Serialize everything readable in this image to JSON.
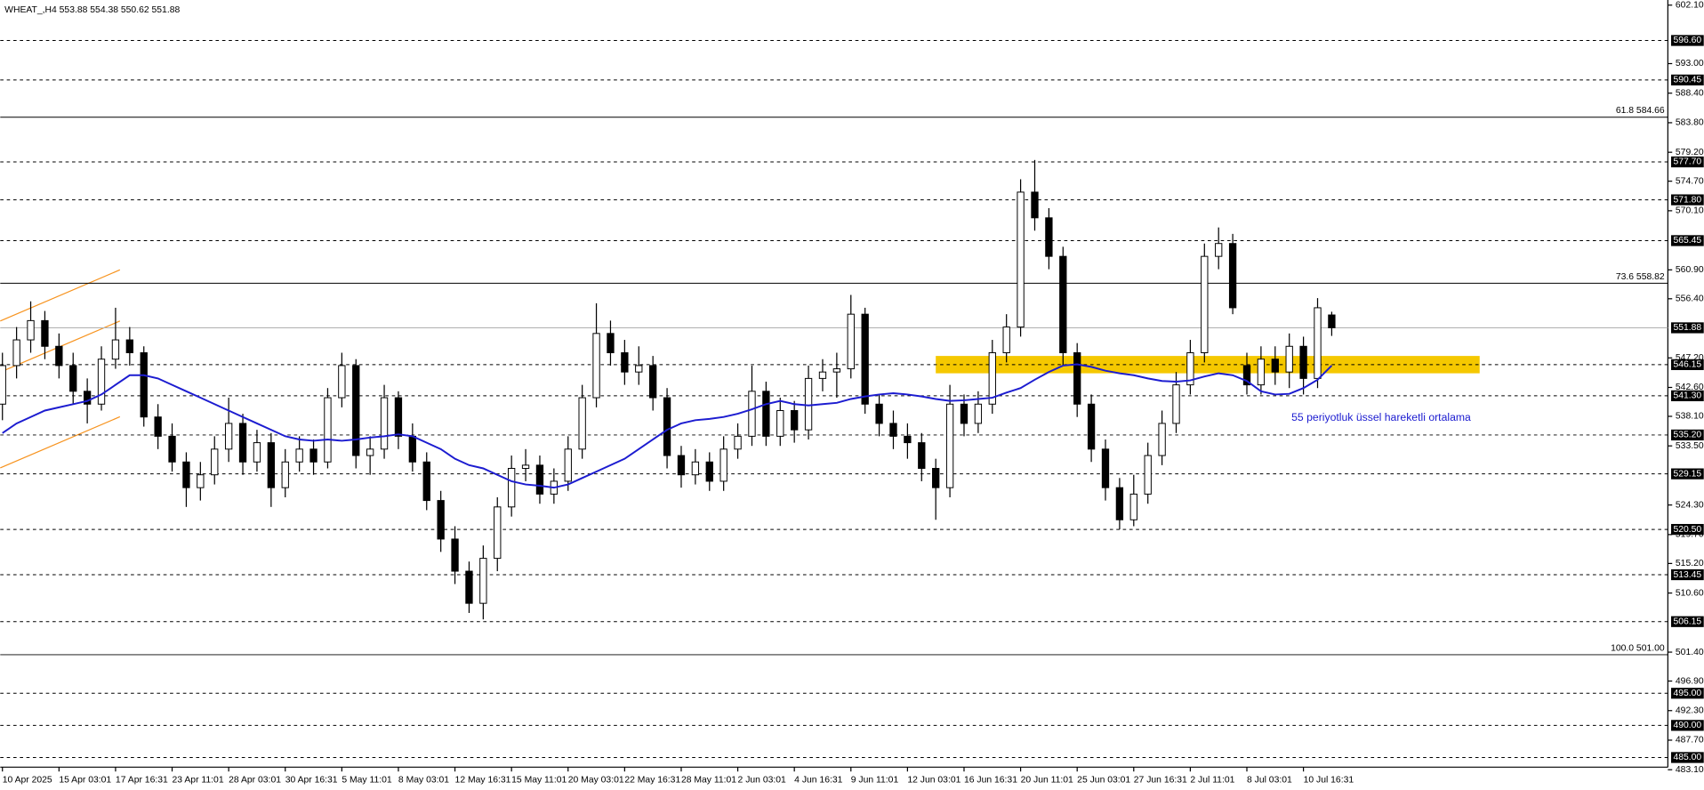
{
  "chart_data": {
    "type": "candlestick",
    "title": "WHEAT_,H4  553.88 554.38 550.62 551.88",
    "categories": [
      "10 Apr 2025",
      null,
      null,
      null,
      "15 Apr 03:01",
      null,
      null,
      null,
      "17 Apr 16:31",
      null,
      null,
      null,
      "23 Apr 11:01",
      null,
      null,
      null,
      "28 Apr 03:01",
      null,
      null,
      null,
      "30 Apr 16:31",
      null,
      null,
      null,
      "5 May 11:01",
      null,
      null,
      null,
      "8 May 03:01",
      null,
      null,
      null,
      "12 May 16:31",
      null,
      null,
      null,
      "15 May 11:01",
      null,
      null,
      null,
      "20 May 03:01",
      null,
      null,
      null,
      "22 May 16:31",
      null,
      null,
      null,
      "28 May 11:01",
      null,
      null,
      null,
      "2 Jun 03:01",
      null,
      null,
      null,
      "4 Jun 16:31",
      null,
      null,
      null,
      "9 Jun 11:01",
      null,
      null,
      null,
      "12 Jun 03:01",
      null,
      null,
      null,
      "16 Jun 16:31",
      null,
      null,
      null,
      "20 Jun 11:01",
      null,
      null,
      null,
      "25 Jun 03:01",
      null,
      null,
      null,
      "27 Jun 16:31",
      null,
      null,
      null,
      "2 Jul 11:01",
      null,
      null,
      null,
      "8 Jul 03:01",
      null,
      null,
      null,
      "10 Jul 16:31",
      null,
      null
    ],
    "open": [
      540,
      546,
      550,
      553,
      549,
      546,
      542,
      540,
      547,
      550,
      548,
      538,
      535,
      531,
      527,
      529,
      533,
      537,
      531,
      534,
      527,
      531,
      533,
      531,
      541,
      546,
      532,
      533,
      541,
      535,
      531,
      525,
      519,
      514,
      509,
      516,
      524,
      530,
      530.5,
      526,
      528,
      533,
      541,
      551,
      548,
      545,
      546,
      541,
      532,
      529,
      531,
      528,
      533,
      535,
      542,
      535,
      539,
      536,
      544,
      545,
      545.5,
      554,
      540,
      537,
      535,
      534,
      530,
      527,
      540,
      537,
      540,
      548,
      552,
      573,
      569,
      563,
      548,
      540,
      533,
      527,
      522,
      526,
      532,
      537,
      543,
      548,
      563,
      565,
      546,
      543,
      547,
      545,
      549,
      544,
      553.88
    ],
    "high": [
      548,
      552,
      556,
      554.5,
      551,
      548,
      544,
      549,
      555,
      552,
      549,
      540,
      537,
      532.5,
      531,
      535,
      541,
      538.5,
      536,
      535.5,
      533,
      535,
      534.5,
      542.5,
      548,
      547,
      535,
      543,
      542,
      537,
      532.5,
      526.5,
      521,
      515.5,
      518,
      525.5,
      532,
      533,
      532,
      530,
      535,
      543,
      555.7,
      553,
      550,
      549,
      547.5,
      542.5,
      533.5,
      533,
      532.5,
      535,
      537,
      546,
      543.5,
      541,
      540.5,
      546,
      547,
      548,
      557,
      555,
      541.5,
      539,
      537,
      535.5,
      531.5,
      543,
      541.5,
      542,
      550,
      554,
      575,
      578,
      570.5,
      564.5,
      549.5,
      541.5,
      534.5,
      528.5,
      529,
      534,
      539,
      545,
      550,
      565,
      567.5,
      566.5,
      548,
      549,
      549,
      551,
      550.5,
      556.5,
      554.38
    ],
    "low": [
      537.5,
      544,
      548,
      547,
      544,
      540,
      537,
      539,
      545.5,
      546,
      536.5,
      533,
      529.5,
      524,
      525,
      527.5,
      531,
      529,
      529.5,
      524,
      525.5,
      529.5,
      529,
      530,
      539.5,
      530,
      529,
      531.5,
      533,
      529.5,
      523.5,
      517,
      512,
      507.5,
      506.5,
      514,
      522.5,
      528,
      524.5,
      524.5,
      526.5,
      531.5,
      539.5,
      546,
      543,
      543,
      539,
      530,
      527,
      527.5,
      526.5,
      526.5,
      531.5,
      533.5,
      533.5,
      533.5,
      534,
      534.5,
      542,
      541,
      544,
      538.5,
      535,
      533,
      531.5,
      528,
      522,
      525.5,
      535,
      535.5,
      538.5,
      546.5,
      550.5,
      567,
      561,
      546,
      538,
      531,
      525,
      520.5,
      521,
      524.5,
      530.5,
      535.5,
      541.5,
      546.5,
      561,
      554,
      541.5,
      541.5,
      543,
      542.5,
      541.5,
      542.5,
      550.62
    ],
    "close": [
      546,
      550,
      553,
      549,
      546,
      542,
      540,
      547,
      550,
      548,
      538,
      535,
      531,
      527,
      529,
      533,
      537,
      531,
      534,
      527,
      531,
      533,
      531,
      541,
      546,
      532,
      533,
      541,
      535,
      531,
      525,
      519,
      514,
      509,
      516,
      524,
      530,
      530.5,
      526,
      528,
      533,
      541,
      551,
      548,
      545,
      546,
      541,
      532,
      529,
      531,
      528,
      533,
      535,
      542,
      535,
      539,
      536,
      544,
      545,
      545.5,
      554,
      540,
      537,
      535,
      534,
      530,
      527,
      540,
      537,
      540,
      548,
      552,
      573,
      569,
      563,
      548,
      540,
      533,
      527,
      522,
      526,
      532,
      537,
      543,
      548,
      563,
      565,
      555,
      543,
      547,
      545,
      549,
      544,
      555,
      551.88
    ],
    "series": [
      {
        "name": "55 periyotluk üssel hareketli ortalama",
        "color": "#1c1cd0",
        "values": [
          535.5,
          537,
          538,
          539,
          539.5,
          540,
          540.5,
          541.5,
          543,
          544.5,
          544.5,
          544,
          543,
          542,
          541,
          540,
          539,
          538,
          537,
          536,
          535,
          534.5,
          534.3,
          534.5,
          534.3,
          534.5,
          534.8,
          535,
          535.3,
          535,
          534,
          533,
          531.5,
          530.5,
          530,
          529,
          528,
          527.5,
          527.3,
          527,
          527.5,
          528.5,
          529.5,
          530.5,
          531.5,
          533,
          534.5,
          536,
          537,
          537.5,
          537.7,
          538,
          538.5,
          539.2,
          540,
          540.5,
          540,
          539.8,
          540,
          540.2,
          540.8,
          541.2,
          541.5,
          541.7,
          541.5,
          541.2,
          540.8,
          540.5,
          540.6,
          540.8,
          541,
          541.8,
          542.5,
          543.8,
          545,
          546,
          546.2,
          545.8,
          545.2,
          544.8,
          544.5,
          544,
          543.6,
          543.5,
          543.7,
          544.3,
          544.8,
          544.5,
          543.6,
          542,
          541.5,
          541.6,
          542.5,
          543.8,
          546
        ]
      }
    ],
    "zone": [
      544.8,
      547.5
    ],
    "zone_color": "#f5c800",
    "ylim": [
      483.5,
      602.9
    ],
    "yticks": [
      {
        "value": 602.1,
        "label": "602.10"
      },
      {
        "value": 593,
        "label": "593.00"
      },
      {
        "value": 588.4,
        "label": "588.40"
      },
      {
        "value": 583.8,
        "label": "583.80"
      },
      {
        "value": 579.2,
        "label": "579.20"
      },
      {
        "value": 574.7,
        "label": "574.70"
      },
      {
        "value": 570.1,
        "label": "570.10"
      },
      {
        "value": 560.9,
        "label": "560.90"
      },
      {
        "value": 556.4,
        "label": "556.40"
      },
      {
        "value": 547.2,
        "label": "547.20"
      },
      {
        "value": 542.6,
        "label": "542.60"
      },
      {
        "value": 538.1,
        "label": "538.10"
      },
      {
        "value": 533.5,
        "label": "533.50"
      },
      {
        "value": 524.3,
        "label": "524.30"
      },
      {
        "value": 519.7,
        "label": "519.70"
      },
      {
        "value": 515.2,
        "label": "515.20"
      },
      {
        "value": 510.6,
        "label": "510.60"
      },
      {
        "value": 501.4,
        "label": "501.40"
      },
      {
        "value": 496.9,
        "label": "496.90"
      },
      {
        "value": 492.3,
        "label": "492.30"
      },
      {
        "value": 487.7,
        "label": "487.70"
      },
      {
        "value": 483.1,
        "label": "483.10"
      }
    ],
    "levels": [
      {
        "value": 596.6,
        "label": "596.60"
      },
      {
        "value": 590.45,
        "label": "590.45"
      },
      {
        "value": 577.7,
        "label": "577.70"
      },
      {
        "value": 571.8,
        "label": "571.80"
      },
      {
        "value": 565.45,
        "label": "565.45"
      },
      {
        "value": 546.15,
        "label": "546.15"
      },
      {
        "value": 541.3,
        "label": "541.30"
      },
      {
        "value": 535.2,
        "label": "535.20"
      },
      {
        "value": 529.15,
        "label": "529.15"
      },
      {
        "value": 520.5,
        "label": "520.50"
      },
      {
        "value": 513.45,
        "label": "513.45"
      },
      {
        "value": 506.15,
        "label": "506.15"
      },
      {
        "value": 495,
        "label": "495.00"
      },
      {
        "value": 490,
        "label": "490.00"
      },
      {
        "value": 485,
        "label": "485.00"
      }
    ],
    "fib_levels": [
      {
        "value": 584.66,
        "label": "61.8 584.66"
      },
      {
        "value": 558.82,
        "label": "73.6 558.82"
      },
      {
        "value": 501,
        "label": "100.0 501.00"
      }
    ],
    "last_price": {
      "value": 551.88,
      "label": "551.88"
    }
  }
}
